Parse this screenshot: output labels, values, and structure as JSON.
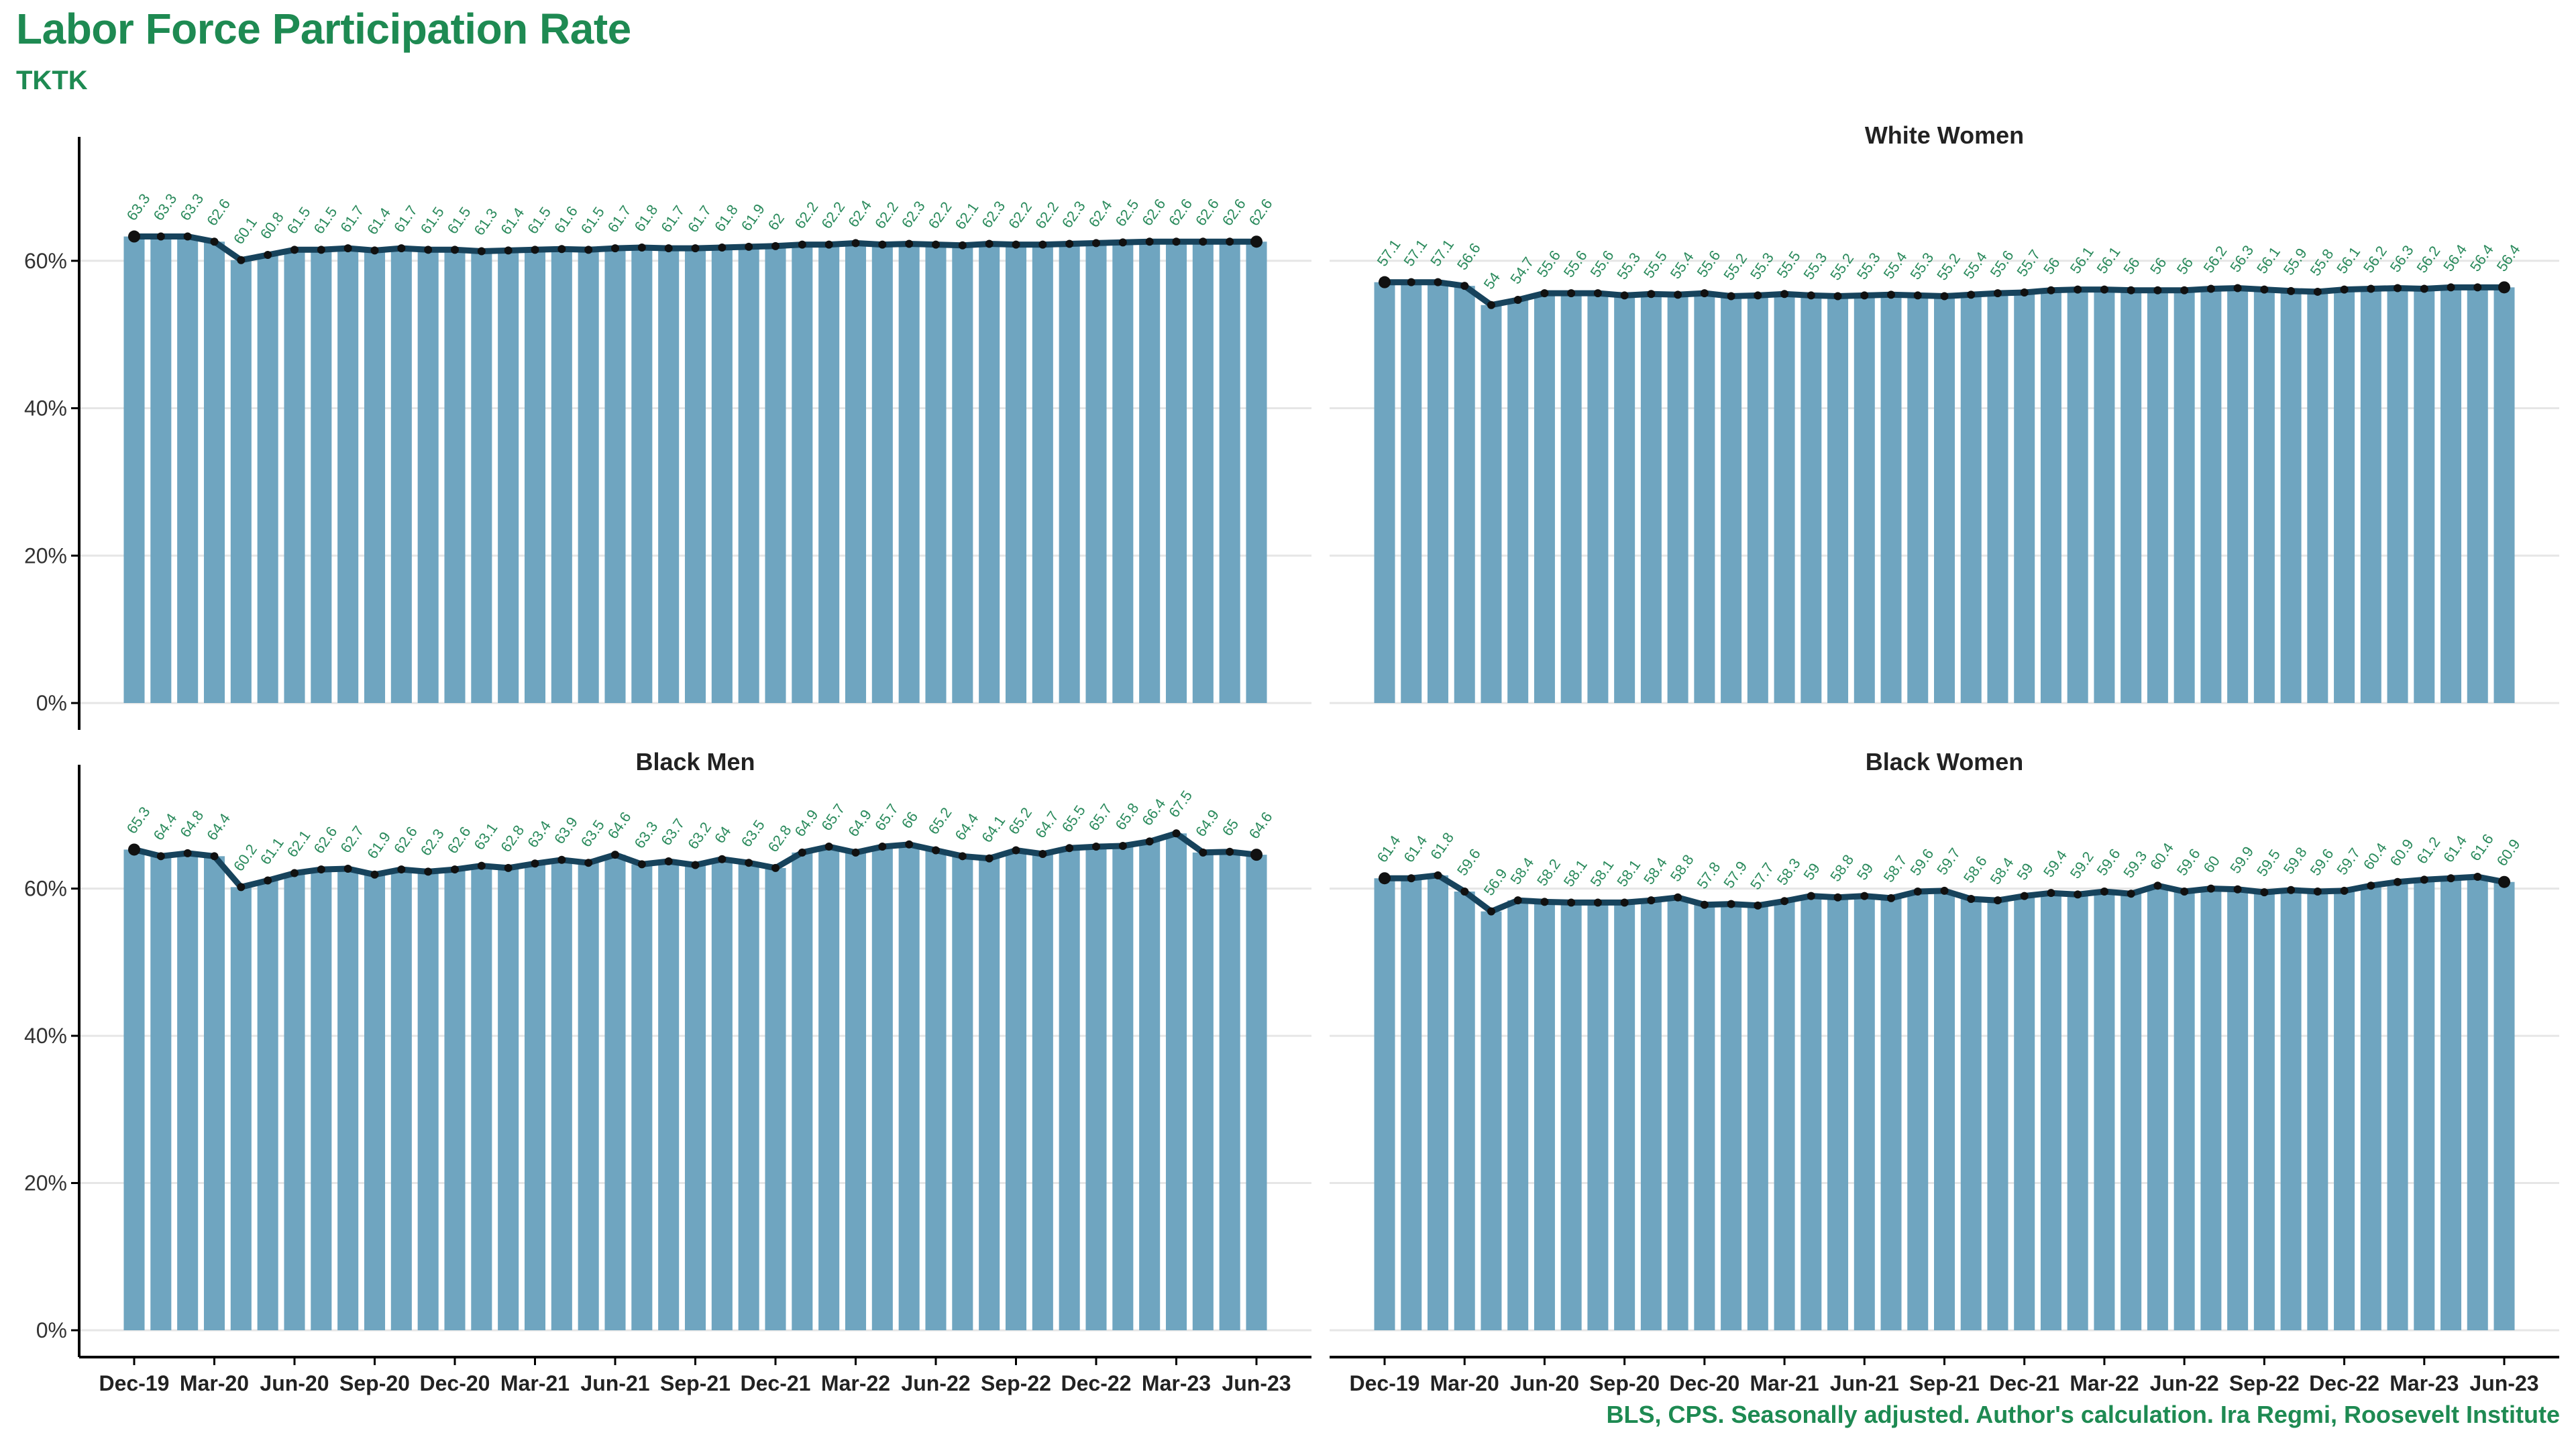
{
  "title": "Labor Force Participation Rate",
  "subtitle": "TKTK",
  "caption": "BLS, CPS. Seasonally adjusted. Author's calculation. Ira Regmi, Roosevelt Institute",
  "colors": {
    "title": "#1e8a52",
    "bar": "#6fa5c0",
    "line": "#17435c",
    "point": "#111111",
    "label": "#2a8a5c",
    "grid": "#e6e6e6"
  },
  "chart_data": [
    {
      "type": "bar",
      "title": "",
      "ylim": [
        0,
        75
      ],
      "yticks": [
        0,
        20,
        40,
        60
      ],
      "ytick_labels": [
        "0%",
        "20%",
        "40%",
        "60%"
      ],
      "xtick_labels": [
        "Dec-19",
        "Mar-20",
        "Jun-20",
        "Sep-20",
        "Dec-20",
        "Mar-21",
        "Jun-21",
        "Sep-21",
        "Dec-21",
        "Mar-22",
        "Jun-22",
        "Sep-22",
        "Dec-22",
        "Mar-23",
        "Jun-23"
      ],
      "grid": true,
      "values": [
        63.3,
        63.3,
        63.3,
        62.6,
        60.1,
        60.8,
        61.5,
        61.5,
        61.7,
        61.4,
        61.7,
        61.5,
        61.5,
        61.3,
        61.4,
        61.5,
        61.6,
        61.5,
        61.7,
        61.8,
        61.7,
        61.7,
        61.8,
        61.9,
        62.0,
        62.2,
        62.2,
        62.4,
        62.2,
        62.3,
        62.2,
        62.1,
        62.3,
        62.2,
        62.2,
        62.3,
        62.4,
        62.5,
        62.6,
        62.6,
        62.6,
        62.6,
        62.6
      ],
      "labels": [
        "63.3",
        "63.3",
        "63.3",
        "62.6",
        "60.1",
        "60.8",
        "61.5",
        "61.5",
        "61.7",
        "61.4",
        "61.7",
        "61.5",
        "61.5",
        "61.3",
        "61.4",
        "61.5",
        "61.6",
        "61.5",
        "61.7",
        "61.8",
        "61.7",
        "61.7",
        "61.8",
        "61.9",
        "62",
        "62.2",
        "62.2",
        "62.4",
        "62.2",
        "62.3",
        "62.2",
        "62.1",
        "62.3",
        "62.2",
        "62.2",
        "62.3",
        "62.4",
        "62.5",
        "62.6",
        "62.6",
        "62.6",
        "62.6",
        "62.6"
      ]
    },
    {
      "type": "bar",
      "title": "White Women",
      "ylim": [
        0,
        75
      ],
      "yticks": [
        0,
        20,
        40,
        60
      ],
      "ytick_labels": [
        "0%",
        "20%",
        "40%",
        "60%"
      ],
      "xtick_labels": [
        "Dec-19",
        "Mar-20",
        "Jun-20",
        "Sep-20",
        "Dec-20",
        "Mar-21",
        "Jun-21",
        "Sep-21",
        "Dec-21",
        "Mar-22",
        "Jun-22",
        "Sep-22",
        "Dec-22",
        "Mar-23",
        "Jun-23"
      ],
      "grid": true,
      "values": [
        57.1,
        57.1,
        57.1,
        56.6,
        54.0,
        54.7,
        55.6,
        55.6,
        55.6,
        55.3,
        55.5,
        55.4,
        55.6,
        55.2,
        55.3,
        55.5,
        55.3,
        55.2,
        55.3,
        55.4,
        55.3,
        55.2,
        55.4,
        55.6,
        55.7,
        56.0,
        56.1,
        56.1,
        56.0,
        56.0,
        56.0,
        56.2,
        56.3,
        56.1,
        55.9,
        55.8,
        56.1,
        56.2,
        56.3,
        56.2,
        56.4,
        56.4,
        56.4
      ],
      "labels": [
        "57.1",
        "57.1",
        "57.1",
        "56.6",
        "54",
        "54.7",
        "55.6",
        "55.6",
        "55.6",
        "55.3",
        "55.5",
        "55.4",
        "55.6",
        "55.2",
        "55.3",
        "55.5",
        "55.3",
        "55.2",
        "55.3",
        "55.4",
        "55.3",
        "55.2",
        "55.4",
        "55.6",
        "55.7",
        "56",
        "56.1",
        "56.1",
        "56",
        "56",
        "56",
        "56.2",
        "56.3",
        "56.1",
        "55.9",
        "55.8",
        "56.1",
        "56.2",
        "56.3",
        "56.2",
        "56.4",
        "56.4",
        "56.4"
      ]
    },
    {
      "type": "bar",
      "title": "Black Men",
      "ylim": [
        0,
        75
      ],
      "yticks": [
        0,
        20,
        40,
        60
      ],
      "ytick_labels": [
        "0%",
        "20%",
        "40%",
        "60%"
      ],
      "xtick_labels": [
        "Dec-19",
        "Mar-20",
        "Jun-20",
        "Sep-20",
        "Dec-20",
        "Mar-21",
        "Jun-21",
        "Sep-21",
        "Dec-21",
        "Mar-22",
        "Jun-22",
        "Sep-22",
        "Dec-22",
        "Mar-23",
        "Jun-23"
      ],
      "grid": true,
      "values": [
        65.3,
        64.4,
        64.8,
        64.4,
        60.2,
        61.1,
        62.1,
        62.6,
        62.7,
        61.9,
        62.6,
        62.3,
        62.6,
        63.1,
        62.8,
        63.4,
        63.9,
        63.5,
        64.6,
        63.3,
        63.7,
        63.2,
        64.0,
        63.5,
        62.8,
        64.9,
        65.7,
        64.9,
        65.7,
        66.0,
        65.2,
        64.4,
        64.1,
        65.2,
        64.7,
        65.5,
        65.7,
        65.8,
        66.4,
        67.5,
        64.9,
        65.0,
        64.6
      ],
      "labels": [
        "65.3",
        "64.4",
        "64.8",
        "64.4",
        "60.2",
        "61.1",
        "62.1",
        "62.6",
        "62.7",
        "61.9",
        "62.6",
        "62.3",
        "62.6",
        "63.1",
        "62.8",
        "63.4",
        "63.9",
        "63.5",
        "64.6",
        "63.3",
        "63.7",
        "63.2",
        "64",
        "63.5",
        "62.8",
        "64.9",
        "65.7",
        "64.9",
        "65.7",
        "66",
        "65.2",
        "64.4",
        "64.1",
        "65.2",
        "64.7",
        "65.5",
        "65.7",
        "65.8",
        "66.4",
        "67.5",
        "64.9",
        "65",
        "64.6"
      ]
    },
    {
      "type": "bar",
      "title": "Black Women",
      "ylim": [
        0,
        75
      ],
      "yticks": [
        0,
        20,
        40,
        60
      ],
      "ytick_labels": [
        "0%",
        "20%",
        "40%",
        "60%"
      ],
      "xtick_labels": [
        "Dec-19",
        "Mar-20",
        "Jun-20",
        "Sep-20",
        "Dec-20",
        "Mar-21",
        "Jun-21",
        "Sep-21",
        "Dec-21",
        "Mar-22",
        "Jun-22",
        "Sep-22",
        "Dec-22",
        "Mar-23",
        "Jun-23"
      ],
      "grid": true,
      "values": [
        61.4,
        61.4,
        61.8,
        59.6,
        56.9,
        58.4,
        58.2,
        58.1,
        58.1,
        58.1,
        58.4,
        58.8,
        57.8,
        57.9,
        57.7,
        58.3,
        59.0,
        58.8,
        59.0,
        58.7,
        59.6,
        59.7,
        58.6,
        58.4,
        59.0,
        59.4,
        59.2,
        59.6,
        59.3,
        60.4,
        59.6,
        60.0,
        59.9,
        59.5,
        59.8,
        59.6,
        59.7,
        60.4,
        60.9,
        61.2,
        61.4,
        61.6,
        60.9
      ],
      "labels": [
        "61.4",
        "61.4",
        "61.8",
        "59.6",
        "56.9",
        "58.4",
        "58.2",
        "58.1",
        "58.1",
        "58.1",
        "58.4",
        "58.8",
        "57.8",
        "57.9",
        "57.7",
        "58.3",
        "59",
        "58.8",
        "59",
        "58.7",
        "59.6",
        "59.7",
        "58.6",
        "58.4",
        "59",
        "59.4",
        "59.2",
        "59.6",
        "59.3",
        "60.4",
        "59.6",
        "60",
        "59.9",
        "59.5",
        "59.8",
        "59.6",
        "59.7",
        "60.4",
        "60.9",
        "61.2",
        "61.4",
        "61.6",
        "60.9"
      ]
    }
  ]
}
